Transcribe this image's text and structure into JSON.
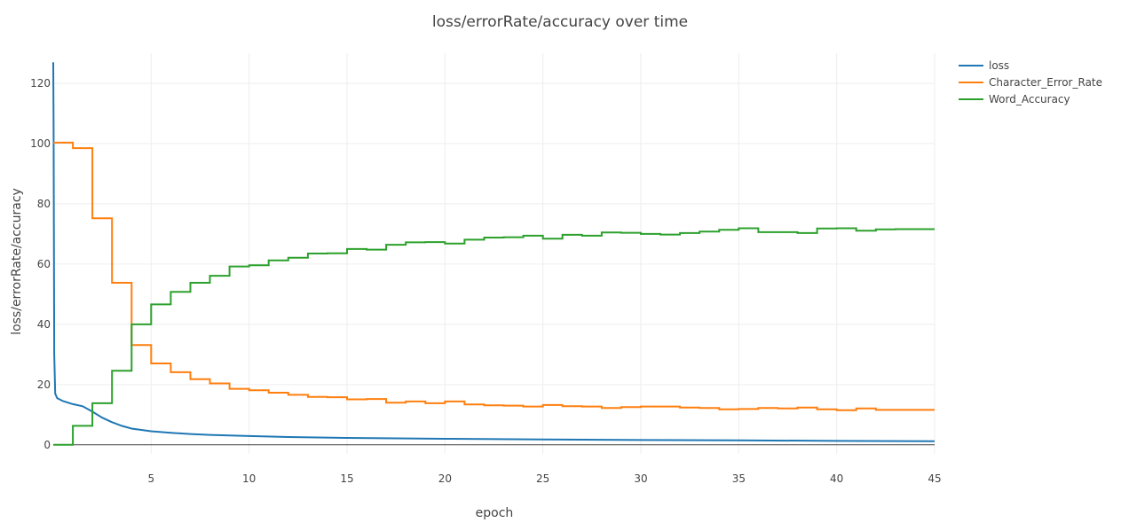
{
  "chart_data": {
    "type": "line",
    "title": "loss/errorRate/accuracy over time",
    "xlabel": "epoch",
    "ylabel": "loss/errorRate/accuracy",
    "xlim": [
      0,
      45
    ],
    "ylim": [
      -3,
      130
    ],
    "xticks": [
      5,
      10,
      15,
      20,
      25,
      30,
      35,
      40,
      45
    ],
    "yticks": [
      0,
      20,
      40,
      60,
      80,
      100,
      120
    ],
    "grid": true,
    "legend_position": "top-right",
    "series": [
      {
        "name": "loss",
        "color": "#1f77b4",
        "shape": "line",
        "x": [
          0,
          0.02,
          0.05,
          0.1,
          0.2,
          0.5,
          1,
          1.5,
          2,
          2.5,
          3,
          3.5,
          4,
          5,
          6,
          7,
          8,
          9,
          10,
          12,
          15,
          20,
          25,
          30,
          35,
          40,
          45
        ],
        "y": [
          127,
          105,
          30,
          17,
          15.5,
          14.5,
          13.5,
          12.8,
          11,
          9,
          7.5,
          6.3,
          5.4,
          4.5,
          4.0,
          3.6,
          3.3,
          3.1,
          2.9,
          2.6,
          2.3,
          2.0,
          1.8,
          1.6,
          1.5,
          1.3,
          1.2
        ]
      },
      {
        "name": "Character_Error_Rate",
        "color": "#ff7f0e",
        "shape": "step",
        "x": [
          0,
          1,
          2,
          3,
          4,
          5,
          6,
          7,
          8,
          9,
          10,
          11,
          12,
          13,
          14,
          15,
          16,
          17,
          18,
          19,
          20,
          21,
          22,
          23,
          24,
          25,
          26,
          27,
          28,
          29,
          30,
          31,
          32,
          33,
          34,
          35,
          36,
          37,
          38,
          39,
          40,
          41,
          42,
          43,
          44,
          45
        ],
        "y": [
          100.3,
          98.5,
          75.2,
          53.8,
          33.1,
          27.0,
          24.1,
          21.8,
          20.4,
          18.6,
          18.1,
          17.3,
          16.6,
          15.9,
          15.8,
          15.1,
          15.2,
          14.0,
          14.4,
          13.8,
          14.4,
          13.4,
          13.1,
          13.0,
          12.7,
          13.2,
          12.8,
          12.7,
          12.2,
          12.5,
          12.7,
          12.7,
          12.4,
          12.2,
          11.8,
          11.9,
          12.2,
          12.1,
          12.4,
          11.8,
          11.5,
          12.1,
          11.6,
          11.6,
          11.6,
          11.6
        ]
      },
      {
        "name": "Word_Accuracy",
        "color": "#2ca02c",
        "shape": "step",
        "x": [
          0,
          1,
          2,
          3,
          4,
          5,
          6,
          7,
          8,
          9,
          10,
          11,
          12,
          13,
          14,
          15,
          16,
          17,
          18,
          19,
          20,
          21,
          22,
          23,
          24,
          25,
          26,
          27,
          28,
          29,
          30,
          31,
          32,
          33,
          34,
          35,
          36,
          37,
          38,
          39,
          40,
          41,
          42,
          43,
          44,
          45
        ],
        "y": [
          0,
          6.3,
          13.8,
          24.6,
          40.0,
          46.6,
          50.8,
          53.8,
          56.1,
          59.2,
          59.6,
          61.2,
          62.1,
          63.5,
          63.6,
          65.0,
          64.8,
          66.4,
          67.2,
          67.3,
          66.8,
          68.1,
          68.8,
          68.9,
          69.4,
          68.4,
          69.7,
          69.4,
          70.5,
          70.4,
          70.0,
          69.8,
          70.3,
          70.8,
          71.4,
          71.9,
          70.6,
          70.6,
          70.3,
          71.8,
          71.9,
          71.1,
          71.5,
          71.6,
          71.6,
          71.6
        ]
      }
    ]
  }
}
